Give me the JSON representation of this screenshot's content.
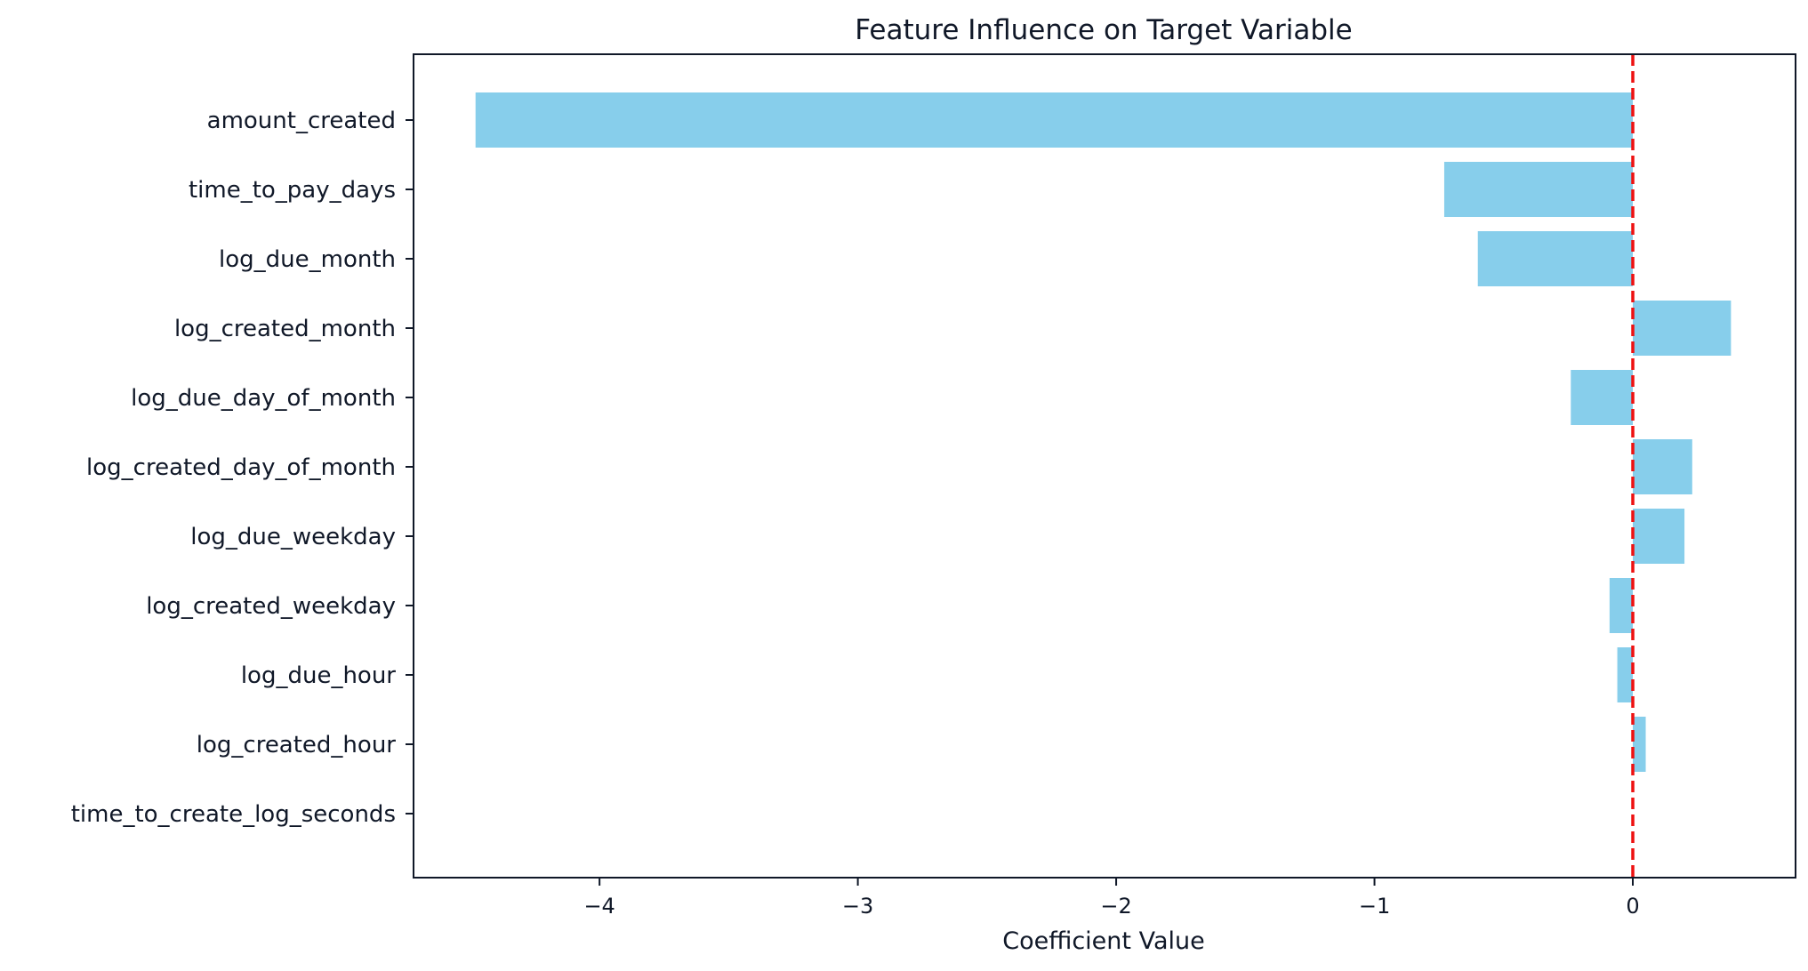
{
  "chart_data": {
    "type": "bar",
    "orientation": "horizontal",
    "title": "Feature Influence on Target Variable",
    "xlabel": "Coefficient Value",
    "ylabel": "",
    "categories": [
      "amount_created",
      "time_to_pay_days",
      "log_due_month",
      "log_created_month",
      "log_due_day_of_month",
      "log_created_day_of_month",
      "log_due_weekday",
      "log_created_weekday",
      "log_due_hour",
      "log_created_hour",
      "time_to_create_log_seconds"
    ],
    "values": [
      -4.48,
      -0.73,
      -0.6,
      0.38,
      -0.24,
      0.23,
      0.2,
      -0.09,
      -0.06,
      0.05,
      0.0
    ],
    "xlim": [
      -4.72,
      0.63
    ],
    "xticks": [
      -4,
      -3,
      -2,
      -1,
      0
    ],
    "xtick_labels": [
      "−4",
      "−3",
      "−2",
      "−1",
      "0"
    ],
    "reference_line": {
      "x": 0,
      "style": "dashed",
      "color": "#ee1111"
    },
    "bar_color": "#87ceeb",
    "grid": false,
    "legend": "none"
  }
}
